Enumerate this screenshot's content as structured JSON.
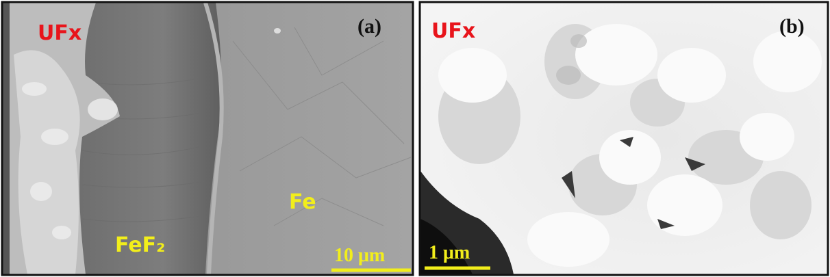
{
  "panels": [
    {
      "label": "(a)",
      "annotations": [
        "UFx",
        "FeF₂",
        "Fe"
      ],
      "scale_bar": "10 μm"
    },
    {
      "label": "(b)",
      "annotations": [
        "UFx"
      ],
      "scale_bar": "1 μm"
    }
  ]
}
